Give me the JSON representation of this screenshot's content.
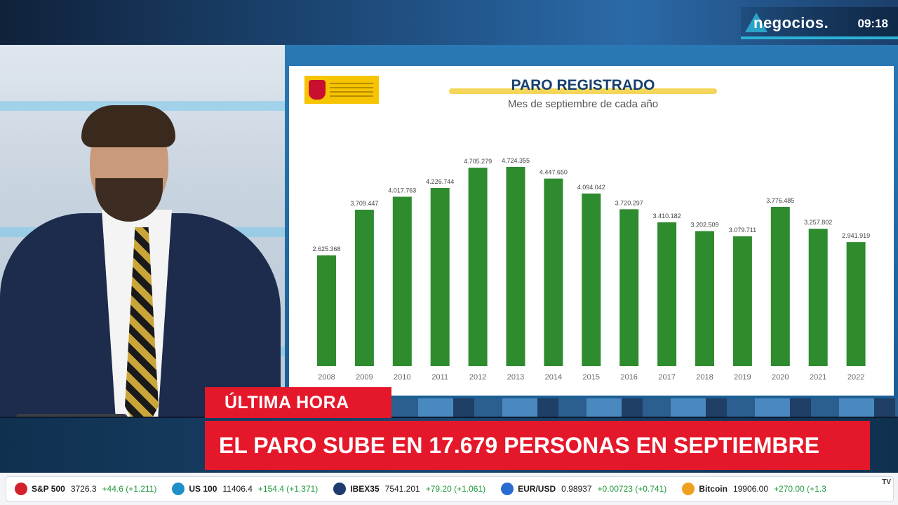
{
  "channel": {
    "name": "negocios.",
    "time": "09:18"
  },
  "slide": {
    "title": "PARO REGISTRADO",
    "subtitle": "Mes de septiembre de cada año"
  },
  "chart_data": {
    "type": "bar",
    "title": "PARO REGISTRADO",
    "subtitle": "Mes de septiembre de cada año",
    "categories": [
      "2008",
      "2009",
      "2010",
      "2011",
      "2012",
      "2013",
      "2014",
      "2015",
      "2016",
      "2017",
      "2018",
      "2019",
      "2020",
      "2021",
      "2022"
    ],
    "values": [
      2625368,
      3709447,
      4017763,
      4226744,
      4705279,
      4724355,
      4447650,
      4094042,
      3720297,
      3410182,
      3202509,
      3079711,
      3776485,
      3257802,
      2941919
    ],
    "labels": [
      "2.625.368",
      "3.709.447",
      "4.017.763",
      "4.226.744",
      "4.705.279",
      "4.724.355",
      "4.447.650",
      "4.094.042",
      "3.720.297",
      "3.410.182",
      "3.202.509",
      "3.079.711",
      "3.776.485",
      "3.257.802",
      "2.941.919"
    ],
    "ylim": [
      0,
      4724355
    ],
    "grid": false,
    "bar_color": "#2e8b2e"
  },
  "banner": {
    "tag": "ÚLTIMA HORA",
    "headline": "EL PARO SUBE EN 17.679 PERSONAS EN SEPTIEMBRE"
  },
  "ticker": [
    {
      "name": "S&P 500",
      "value": "3726.3",
      "change": "+44.6 (+1.211)",
      "color": "#d3202a"
    },
    {
      "name": "US 100",
      "value": "11406.4",
      "change": "+154.4 (+1.371)",
      "color": "#1f8fc7"
    },
    {
      "name": "IBEX35",
      "value": "7541.201",
      "change": "+79.20 (+1.061)",
      "color": "#1e3a6e"
    },
    {
      "name": "EUR/USD",
      "value": "0.98937",
      "change": "+0.00723 (+0.741)",
      "color": "#2a6bd1"
    },
    {
      "name": "Bitcoin",
      "value": "19906.00",
      "change": "+270.00 (+1.3",
      "color": "#f0a020"
    }
  ],
  "ticker_brand": "TV"
}
